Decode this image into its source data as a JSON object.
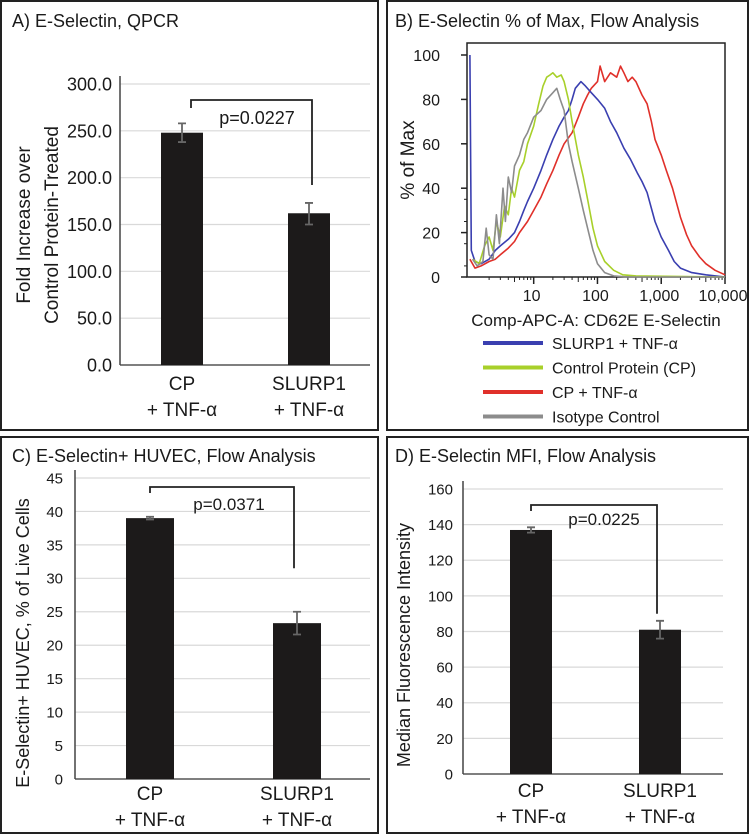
{
  "chart_data": [
    {
      "panel": "A",
      "type": "bar",
      "title": "A) E-Selectin, QPCR",
      "ylabel": [
        "Fold Increase over",
        "Control Protein-Treated"
      ],
      "categories": [
        [
          "CP",
          "+ TNF-α"
        ],
        [
          "SLURP1",
          "+ TNF-α"
        ]
      ],
      "values": [
        248,
        162
      ],
      "errors": [
        [
          238,
          258
        ],
        [
          150,
          173
        ]
      ],
      "ylim": [
        0,
        300
      ],
      "yticks": [
        0,
        50,
        100,
        150,
        200,
        250,
        300
      ],
      "ytick_labels": [
        "0.0",
        "50.0",
        "100.0",
        "150.0",
        "200.0",
        "250.0",
        "300.0"
      ],
      "grid": true,
      "bar_color": "#1c1a1a",
      "annotation": "p=0.0227",
      "bracket_right_end": 185
    },
    {
      "panel": "B",
      "type": "line",
      "title": "B) E-Selectin % of Max, Flow Analysis",
      "xlabel": "Comp-APC-A: CD62E E-Selectin",
      "ylabel": "% of Max",
      "xscale": "log",
      "xlim": [
        0.9,
        10000
      ],
      "ylim": [
        0,
        100
      ],
      "xticks": [
        10,
        100,
        1000,
        10000
      ],
      "xtick_labels": [
        "10",
        "100",
        "1,000",
        "10,000"
      ],
      "yticks": [
        0,
        20,
        40,
        60,
        80,
        100
      ],
      "ytick_labels": [
        "0",
        "20",
        "40",
        "60",
        "80",
        "100"
      ],
      "legend_position": "below",
      "series": [
        {
          "name": "SLURP1 + TNF-α",
          "color": "#3a3fb0",
          "points": [
            [
              1.0,
              100
            ],
            [
              1.05,
              12
            ],
            [
              1.2,
              7
            ],
            [
              1.5,
              6
            ],
            [
              2,
              8
            ],
            [
              2.5,
              12
            ],
            [
              3,
              14
            ],
            [
              4,
              17
            ],
            [
              5,
              20
            ],
            [
              6,
              25
            ],
            [
              7,
              30
            ],
            [
              8,
              34
            ],
            [
              10,
              40
            ],
            [
              13,
              48
            ],
            [
              16,
              55
            ],
            [
              20,
              62
            ],
            [
              25,
              68
            ],
            [
              30,
              72
            ],
            [
              35,
              75
            ],
            [
              40,
              80
            ],
            [
              45,
              85
            ],
            [
              55,
              88
            ],
            [
              65,
              86
            ],
            [
              80,
              83
            ],
            [
              100,
              80
            ],
            [
              130,
              76
            ],
            [
              160,
              70
            ],
            [
              200,
              65
            ],
            [
              260,
              58
            ],
            [
              330,
              53
            ],
            [
              420,
              47
            ],
            [
              500,
              43
            ],
            [
              600,
              38
            ],
            [
              800,
              25
            ],
            [
              1000,
              18
            ],
            [
              1300,
              12
            ],
            [
              1600,
              7
            ],
            [
              2000,
              4
            ],
            [
              3000,
              2
            ],
            [
              5000,
              1
            ],
            [
              10000,
              0
            ]
          ]
        },
        {
          "name": "Control Protein (CP)",
          "color": "#a8d02a",
          "points": [
            [
              1.1,
              8
            ],
            [
              1.4,
              6
            ],
            [
              1.7,
              14
            ],
            [
              2,
              18
            ],
            [
              2.3,
              12
            ],
            [
              2.6,
              25
            ],
            [
              3,
              18
            ],
            [
              3.5,
              32
            ],
            [
              4,
              28
            ],
            [
              4.5,
              40
            ],
            [
              5,
              36
            ],
            [
              6,
              48
            ],
            [
              7,
              52
            ],
            [
              8,
              60
            ],
            [
              10,
              68
            ],
            [
              12,
              78
            ],
            [
              14,
              86
            ],
            [
              16,
              90
            ],
            [
              18,
              91
            ],
            [
              20,
              92
            ],
            [
              23,
              90
            ],
            [
              27,
              91
            ],
            [
              30,
              88
            ],
            [
              35,
              80
            ],
            [
              40,
              70
            ],
            [
              50,
              55
            ],
            [
              60,
              45
            ],
            [
              70,
              35
            ],
            [
              85,
              22
            ],
            [
              100,
              14
            ],
            [
              130,
              7
            ],
            [
              180,
              3
            ],
            [
              250,
              1
            ],
            [
              400,
              0.5
            ],
            [
              10000,
              0
            ]
          ]
        },
        {
          "name": "CP + TNF-α",
          "color": "#e0302a",
          "points": [
            [
              1.0,
              8
            ],
            [
              1.2,
              4
            ],
            [
              1.5,
              5
            ],
            [
              2,
              7
            ],
            [
              2.5,
              8
            ],
            [
              3,
              10
            ],
            [
              4,
              13
            ],
            [
              5,
              16
            ],
            [
              6,
              20
            ],
            [
              8,
              25
            ],
            [
              10,
              30
            ],
            [
              13,
              36
            ],
            [
              16,
              42
            ],
            [
              20,
              48
            ],
            [
              25,
              55
            ],
            [
              30,
              60
            ],
            [
              40,
              65
            ],
            [
              50,
              72
            ],
            [
              60,
              78
            ],
            [
              70,
              82
            ],
            [
              80,
              85
            ],
            [
              100,
              88
            ],
            [
              110,
              95
            ],
            [
              130,
              88
            ],
            [
              160,
              92
            ],
            [
              200,
              90
            ],
            [
              230,
              95
            ],
            [
              260,
              92
            ],
            [
              300,
              88
            ],
            [
              350,
              90
            ],
            [
              400,
              88
            ],
            [
              500,
              82
            ],
            [
              600,
              78
            ],
            [
              700,
              70
            ],
            [
              800,
              62
            ],
            [
              1000,
              55
            ],
            [
              1200,
              48
            ],
            [
              1500,
              40
            ],
            [
              2000,
              27
            ],
            [
              2500,
              19
            ],
            [
              3000,
              14
            ],
            [
              4000,
              9
            ],
            [
              5000,
              6
            ],
            [
              7000,
              3
            ],
            [
              10000,
              1
            ]
          ]
        },
        {
          "name": "Isotype Control",
          "color": "#8c8c8c",
          "points": [
            [
              1.1,
              8
            ],
            [
              1.3,
              5
            ],
            [
              1.6,
              7
            ],
            [
              1.8,
              22
            ],
            [
              2,
              10
            ],
            [
              2.3,
              8
            ],
            [
              2.6,
              28
            ],
            [
              2.9,
              15
            ],
            [
              3.3,
              40
            ],
            [
              3.6,
              25
            ],
            [
              4,
              45
            ],
            [
              4.5,
              38
            ],
            [
              5,
              50
            ],
            [
              6,
              55
            ],
            [
              7,
              62
            ],
            [
              8,
              65
            ],
            [
              10,
              72
            ],
            [
              13,
              75
            ],
            [
              16,
              80
            ],
            [
              20,
              83
            ],
            [
              23,
              85
            ],
            [
              26,
              80
            ],
            [
              30,
              75
            ],
            [
              35,
              60
            ],
            [
              40,
              52
            ],
            [
              50,
              40
            ],
            [
              60,
              30
            ],
            [
              70,
              22
            ],
            [
              85,
              12
            ],
            [
              100,
              6
            ],
            [
              130,
              2
            ],
            [
              180,
              0.5
            ],
            [
              300,
              0
            ],
            [
              10000,
              0
            ]
          ]
        }
      ]
    },
    {
      "panel": "C",
      "type": "bar",
      "title": "C) E-Selectin+ HUVEC, Flow Analysis",
      "ylabel": [
        "E-Selectin+ HUVEC,  % of Live Cells"
      ],
      "categories": [
        [
          "CP",
          "+ TNF-α"
        ],
        [
          "SLURP1",
          "+ TNF-α"
        ]
      ],
      "values": [
        39,
        23.3
      ],
      "errors": [
        [
          38.8,
          39.2
        ],
        [
          21.6,
          25
        ]
      ],
      "ylim": [
        0,
        45
      ],
      "yticks": [
        0,
        5,
        10,
        15,
        20,
        25,
        30,
        35,
        40,
        45
      ],
      "ytick_labels": [
        "0",
        "5",
        "10",
        "15",
        "20",
        "25",
        "30",
        "35",
        "40",
        "45"
      ],
      "grid": true,
      "bar_color": "#1c1a1a",
      "annotation": "p=0.0371",
      "bracket_right_end": 31.5
    },
    {
      "panel": "D",
      "type": "bar",
      "title": "D) E-Selectin MFI, Flow Analysis",
      "ylabel": [
        "Median Fluorescence Intensity"
      ],
      "categories": [
        [
          "CP",
          "+ TNF-α"
        ],
        [
          "SLURP1",
          "+ TNF-α"
        ]
      ],
      "values": [
        137,
        81
      ],
      "errors": [
        [
          135.5,
          138.5
        ],
        [
          76,
          86
        ]
      ],
      "ylim": [
        0,
        160
      ],
      "yticks": [
        0,
        20,
        40,
        60,
        80,
        100,
        120,
        140,
        160
      ],
      "ytick_labels": [
        "0",
        "20",
        "40",
        "60",
        "80",
        "100",
        "120",
        "140",
        "160"
      ],
      "grid": true,
      "bar_color": "#1c1a1a",
      "annotation": "p=0.0225",
      "bracket_right_end": 90
    }
  ]
}
